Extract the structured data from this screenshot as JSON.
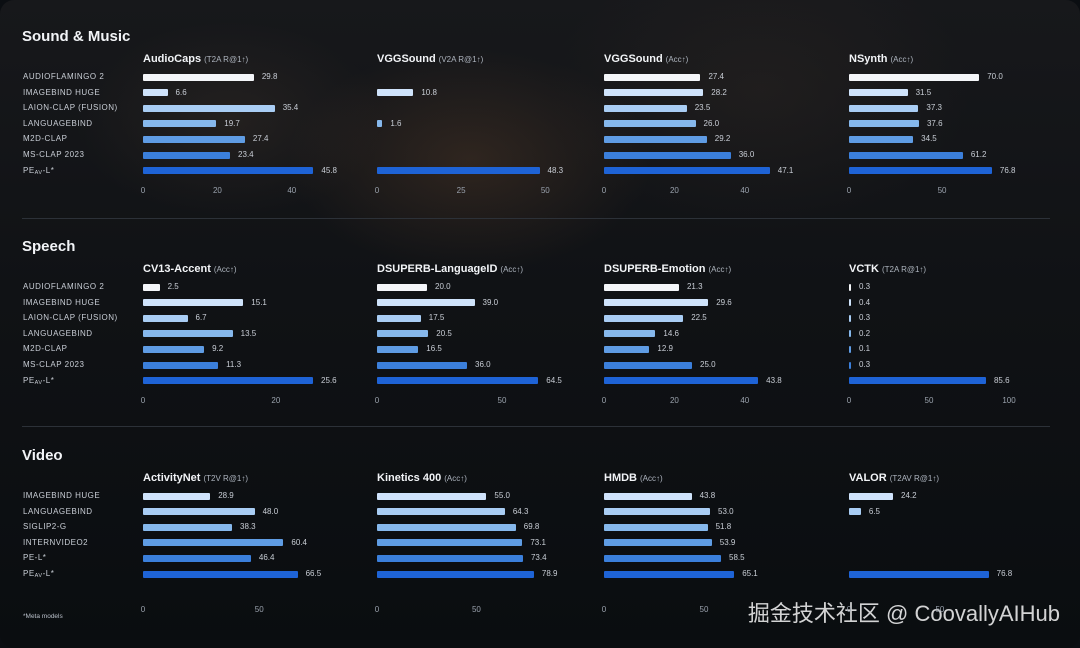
{
  "footnote": "*Meta models",
  "watermark": "掘金技术社区 @ CoovallyAIHub",
  "colors": [
    "#f4f6f9",
    "#cfe3fb",
    "#a9cdf4",
    "#86b8ec",
    "#5f9ce4",
    "#3b7fdb",
    "#1e63d6"
  ],
  "sections": [
    {
      "title": "Sound & Music",
      "rows": [
        {
          "label": "AUDIOFLAMINGO 2",
          "c": 0
        },
        {
          "label": "IMAGEBIND HUGE",
          "c": 1
        },
        {
          "label": "LAION-CLAP (FUSION)",
          "c": 2
        },
        {
          "label": "LANGUAGEBIND",
          "c": 3
        },
        {
          "label": "M2D-CLAP",
          "c": 4
        },
        {
          "label": "MS-CLAP 2023",
          "c": 5
        },
        {
          "label": "PE",
          "sub": "AV",
          "suffix": "-L*",
          "c": 6
        }
      ],
      "panels": [
        {
          "title": "AudioCaps",
          "metric": "(T2A R@1↑)",
          "max": 50,
          "ticks": [
            0,
            20,
            40
          ],
          "values": [
            "29.8",
            "6.6",
            "35.4",
            "19.7",
            "27.4",
            "23.4",
            "45.8"
          ]
        },
        {
          "title": "VGGSound",
          "metric": "(V2A R@1↑)",
          "max": 52,
          "ticks": [
            0,
            25,
            50
          ],
          "values": [
            null,
            "10.8",
            null,
            "1.6",
            null,
            null,
            "48.3"
          ]
        },
        {
          "title": "VGGSound",
          "metric": "(Acc↑)",
          "max": 50,
          "ticks": [
            0,
            20,
            40
          ],
          "values": [
            "27.4",
            "28.2",
            "23.5",
            "26.0",
            "29.2",
            "36.0",
            "47.1"
          ]
        },
        {
          "title": "NSynth",
          "metric": "(Acc↑)",
          "max": 86,
          "ticks": [
            0,
            50
          ],
          "values": [
            "70.0",
            "31.5",
            "37.3",
            "37.6",
            "34.5",
            "61.2",
            "76.8"
          ]
        }
      ]
    },
    {
      "title": "Speech",
      "rows": [
        {
          "label": "AUDIOFLAMINGO 2",
          "c": 0
        },
        {
          "label": "IMAGEBIND HUGE",
          "c": 1
        },
        {
          "label": "LAION-CLAP (FUSION)",
          "c": 2
        },
        {
          "label": "LANGUAGEBIND",
          "c": 3
        },
        {
          "label": "M2D-CLAP",
          "c": 4
        },
        {
          "label": "MS-CLAP 2023",
          "c": 5
        },
        {
          "label": "PE",
          "sub": "AV",
          "suffix": "-L*",
          "c": 6
        }
      ],
      "panels": [
        {
          "title": "CV13-Accent",
          "metric": "(Acc↑)",
          "max": 28,
          "ticks": [
            0,
            20
          ],
          "values": [
            "2.5",
            "15.1",
            "6.7",
            "13.5",
            "9.2",
            "11.3",
            "25.6"
          ]
        },
        {
          "title": "DSUPERB-LanguageID",
          "metric": "(Acc↑)",
          "max": 70,
          "ticks": [
            0,
            50
          ],
          "values": [
            "20.0",
            "39.0",
            "17.5",
            "20.5",
            "16.5",
            "36.0",
            "64.5"
          ]
        },
        {
          "title": "DSUPERB-Emotion",
          "metric": "(Acc↑)",
          "max": 50,
          "ticks": [
            0,
            20,
            40
          ],
          "values": [
            "21.3",
            "29.6",
            "22.5",
            "14.6",
            "12.9",
            "25.0",
            "43.8"
          ]
        },
        {
          "title": "VCTK",
          "metric": "(T2A R@1↑)",
          "max": 100,
          "ticks": [
            0,
            50,
            100
          ],
          "values": [
            "0.3",
            "0.4",
            "0.3",
            "0.2",
            "0.1",
            "0.3",
            "85.6"
          ]
        }
      ]
    },
    {
      "title": "Video",
      "rows": [
        {
          "label": "IMAGEBIND HUGE",
          "c": 1
        },
        {
          "label": "LANGUAGEBIND",
          "c": 2
        },
        {
          "label": "SIGLIP2-G",
          "c": 3
        },
        {
          "label": "INTERNVIDEO2",
          "c": 4
        },
        {
          "label": "PE-L*",
          "c": 5
        },
        {
          "label": "PE",
          "sub": "AV",
          "suffix": "-L*",
          "c": 6
        }
      ],
      "panels": [
        {
          "title": "ActivityNet",
          "metric": "(T2V R@1↑)",
          "max": 80,
          "ticks": [
            0,
            50
          ],
          "values": [
            "28.9",
            "48.0",
            "38.3",
            "60.4",
            "46.4",
            "66.5"
          ]
        },
        {
          "title": "Kinetics 400",
          "metric": "(Acc↑)",
          "max": 88,
          "ticks": [
            0,
            50
          ],
          "values": [
            "55.0",
            "64.3",
            "69.8",
            "73.1",
            "73.4",
            "78.9"
          ]
        },
        {
          "title": "HMDB",
          "metric": "(Acc↑)",
          "max": 88,
          "ticks": [
            0,
            50
          ],
          "values": [
            "43.8",
            "53.0",
            "51.8",
            "53.9",
            "58.5",
            "65.1"
          ]
        },
        {
          "title": "VALOR",
          "metric": "(T2AV R@1↑)",
          "max": 88,
          "ticks": [
            0,
            50
          ],
          "values": [
            "24.2",
            "6.5",
            null,
            null,
            null,
            "76.8"
          ]
        }
      ]
    }
  ],
  "chart_data": [
    {
      "type": "bar",
      "title": "AudioCaps",
      "subtitle": "(T2A R@1↑)",
      "categories": [
        "AUDIOFLAMINGO 2",
        "IMAGEBIND HUGE",
        "LAION-CLAP (FUSION)",
        "LANGUAGEBIND",
        "M2D-CLAP",
        "MS-CLAP 2023",
        "PEAV-L*"
      ],
      "values": [
        29.8,
        6.6,
        35.4,
        19.7,
        27.4,
        23.4,
        45.8
      ],
      "xticks": [
        0,
        20,
        40
      ]
    },
    {
      "type": "bar",
      "title": "VGGSound",
      "subtitle": "(V2A R@1↑)",
      "categories": [
        "AUDIOFLAMINGO 2",
        "IMAGEBIND HUGE",
        "LAION-CLAP (FUSION)",
        "LANGUAGEBIND",
        "M2D-CLAP",
        "MS-CLAP 2023",
        "PEAV-L*"
      ],
      "values": [
        null,
        10.8,
        null,
        1.6,
        null,
        null,
        48.3
      ],
      "xticks": [
        0,
        25,
        50
      ]
    },
    {
      "type": "bar",
      "title": "VGGSound",
      "subtitle": "(Acc↑)",
      "categories": [
        "AUDIOFLAMINGO 2",
        "IMAGEBIND HUGE",
        "LAION-CLAP (FUSION)",
        "LANGUAGEBIND",
        "M2D-CLAP",
        "MS-CLAP 2023",
        "PEAV-L*"
      ],
      "values": [
        27.4,
        28.2,
        23.5,
        26.0,
        29.2,
        36.0,
        47.1
      ],
      "xticks": [
        0,
        20,
        40
      ]
    },
    {
      "type": "bar",
      "title": "NSynth",
      "subtitle": "(Acc↑)",
      "categories": [
        "AUDIOFLAMINGO 2",
        "IMAGEBIND HUGE",
        "LAION-CLAP (FUSION)",
        "LANGUAGEBIND",
        "M2D-CLAP",
        "MS-CLAP 2023",
        "PEAV-L*"
      ],
      "values": [
        70.0,
        31.5,
        37.3,
        37.6,
        34.5,
        61.2,
        76.8
      ],
      "xticks": [
        0,
        50
      ]
    },
    {
      "type": "bar",
      "title": "CV13-Accent",
      "subtitle": "(Acc↑)",
      "categories": [
        "AUDIOFLAMINGO 2",
        "IMAGEBIND HUGE",
        "LAION-CLAP (FUSION)",
        "LANGUAGEBIND",
        "M2D-CLAP",
        "MS-CLAP 2023",
        "PEAV-L*"
      ],
      "values": [
        2.5,
        15.1,
        6.7,
        13.5,
        9.2,
        11.3,
        25.6
      ],
      "xticks": [
        0,
        20
      ]
    },
    {
      "type": "bar",
      "title": "DSUPERB-LanguageID",
      "subtitle": "(Acc↑)",
      "categories": [
        "AUDIOFLAMINGO 2",
        "IMAGEBIND HUGE",
        "LAION-CLAP (FUSION)",
        "LANGUAGEBIND",
        "M2D-CLAP",
        "MS-CLAP 2023",
        "PEAV-L*"
      ],
      "values": [
        20.0,
        39.0,
        17.5,
        20.5,
        16.5,
        36.0,
        64.5
      ],
      "xticks": [
        0,
        50
      ]
    },
    {
      "type": "bar",
      "title": "DSUPERB-Emotion",
      "subtitle": "(Acc↑)",
      "categories": [
        "AUDIOFLAMINGO 2",
        "IMAGEBIND HUGE",
        "LAION-CLAP (FUSION)",
        "LANGUAGEBIND",
        "M2D-CLAP",
        "MS-CLAP 2023",
        "PEAV-L*"
      ],
      "values": [
        21.3,
        29.6,
        22.5,
        14.6,
        12.9,
        25.0,
        43.8
      ],
      "xticks": [
        0,
        20,
        40
      ]
    },
    {
      "type": "bar",
      "title": "VCTK",
      "subtitle": "(T2A R@1↑)",
      "categories": [
        "AUDIOFLAMINGO 2",
        "IMAGEBIND HUGE",
        "LAION-CLAP (FUSION)",
        "LANGUAGEBIND",
        "M2D-CLAP",
        "MS-CLAP 2023",
        "PEAV-L*"
      ],
      "values": [
        0.3,
        0.4,
        0.3,
        0.2,
        0.1,
        0.3,
        85.6
      ],
      "xticks": [
        0,
        50,
        100
      ]
    },
    {
      "type": "bar",
      "title": "ActivityNet",
      "subtitle": "(T2V R@1↑)",
      "categories": [
        "IMAGEBIND HUGE",
        "LANGUAGEBIND",
        "SIGLIP2-G",
        "INTERNVIDEO2",
        "PE-L*",
        "PEAV-L*"
      ],
      "values": [
        28.9,
        48.0,
        38.3,
        60.4,
        46.4,
        66.5
      ],
      "xticks": [
        0,
        50
      ]
    },
    {
      "type": "bar",
      "title": "Kinetics 400",
      "subtitle": "(Acc↑)",
      "categories": [
        "IMAGEBIND HUGE",
        "LANGUAGEBIND",
        "SIGLIP2-G",
        "INTERNVIDEO2",
        "PE-L*",
        "PEAV-L*"
      ],
      "values": [
        55.0,
        64.3,
        69.8,
        73.1,
        73.4,
        78.9
      ],
      "xticks": [
        0,
        50
      ]
    },
    {
      "type": "bar",
      "title": "HMDB",
      "subtitle": "(Acc↑)",
      "categories": [
        "IMAGEBIND HUGE",
        "LANGUAGEBIND",
        "SIGLIP2-G",
        "INTERNVIDEO2",
        "PE-L*",
        "PEAV-L*"
      ],
      "values": [
        43.8,
        53.0,
        51.8,
        53.9,
        58.5,
        65.1
      ],
      "xticks": [
        0,
        50
      ]
    },
    {
      "type": "bar",
      "title": "VALOR",
      "subtitle": "(T2AV R@1↑)",
      "categories": [
        "IMAGEBIND HUGE",
        "LANGUAGEBIND",
        "SIGLIP2-G",
        "INTERNVIDEO2",
        "PE-L*",
        "PEAV-L*"
      ],
      "values": [
        24.2,
        6.5,
        null,
        null,
        null,
        76.8
      ],
      "xticks": [
        0,
        50
      ]
    }
  ]
}
